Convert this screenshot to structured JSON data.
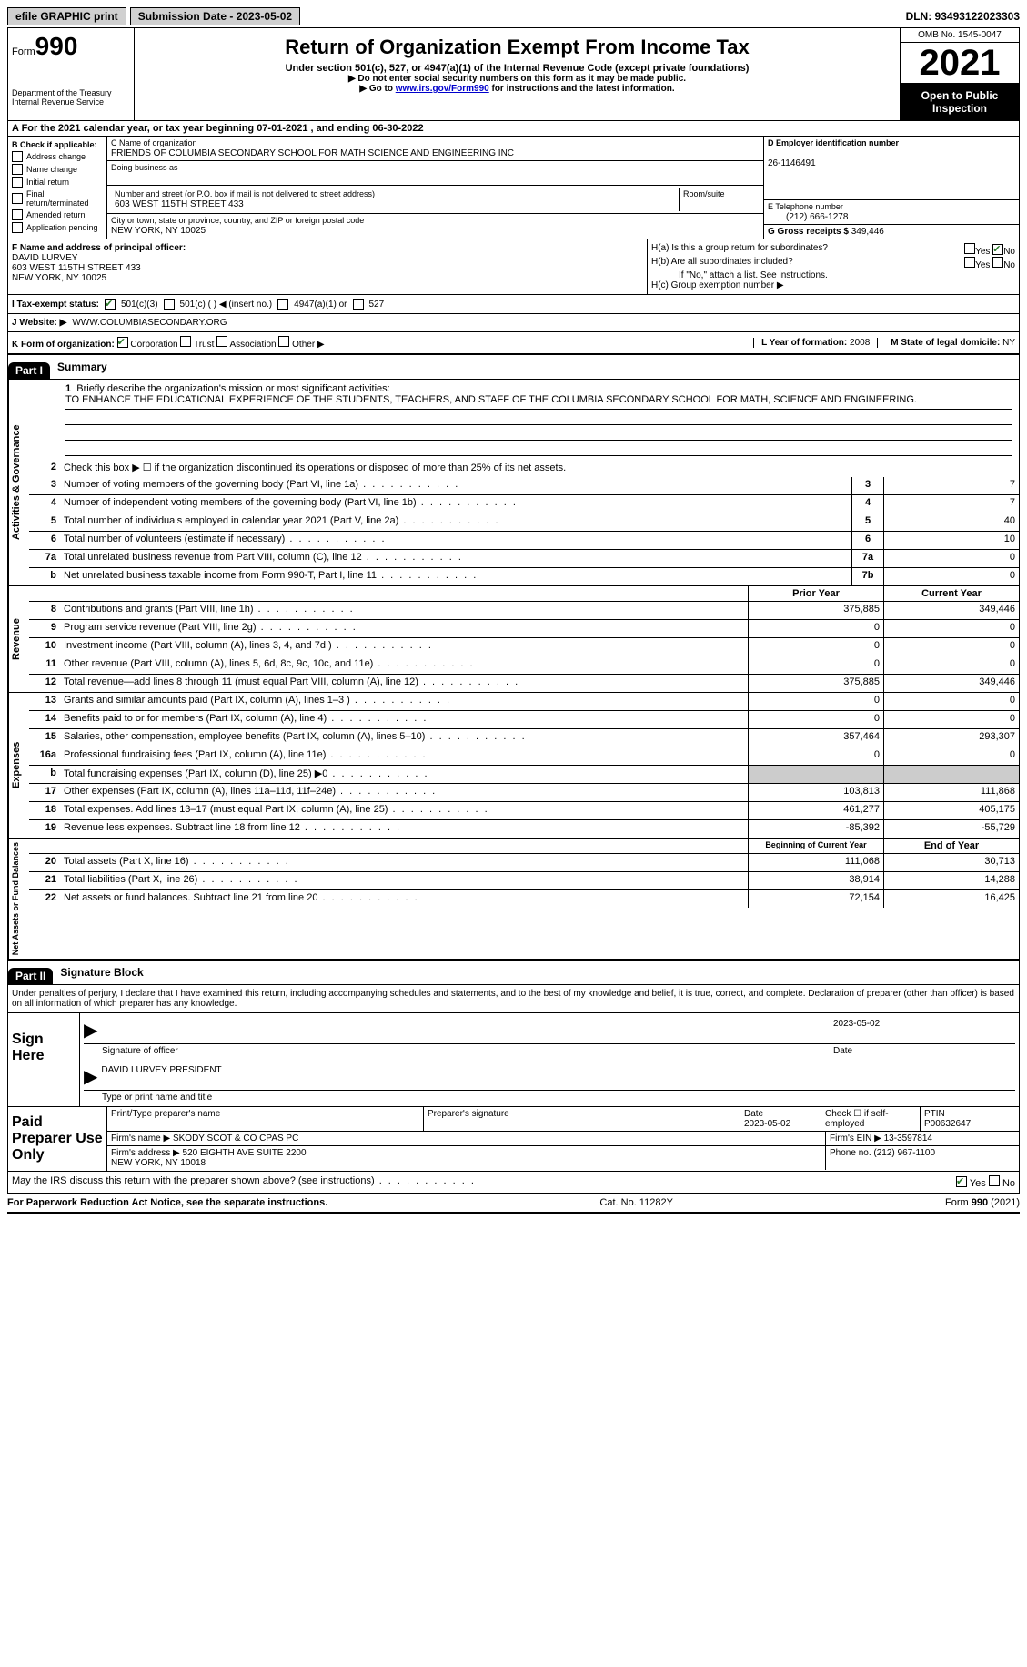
{
  "topbar": {
    "efile": "efile GRAPHIC print",
    "submission": "Submission Date - 2023-05-02",
    "dln": "DLN: 93493122023303"
  },
  "header": {
    "form_prefix": "Form",
    "form_num": "990",
    "title": "Return of Organization Exempt From Income Tax",
    "subtitle": "Under section 501(c), 527, or 4947(a)(1) of the Internal Revenue Code (except private foundations)",
    "line1": "▶ Do not enter social security numbers on this form as it may be made public.",
    "line2_pre": "▶ Go to ",
    "line2_link": "www.irs.gov/Form990",
    "line2_post": " for instructions and the latest information.",
    "dept": "Department of the Treasury\nInternal Revenue Service",
    "omb": "OMB No. 1545-0047",
    "year": "2021",
    "open": "Open to Public Inspection"
  },
  "rowA": "A For the 2021 calendar year, or tax year beginning 07-01-2021    , and ending 06-30-2022",
  "boxB": {
    "label": "B Check if applicable:",
    "items": [
      "Address change",
      "Name change",
      "Initial return",
      "Final return/terminated",
      "Amended return",
      "Application pending"
    ]
  },
  "boxC": {
    "name_label": "C Name of organization",
    "name": "FRIENDS OF COLUMBIA SECONDARY SCHOOL FOR MATH SCIENCE AND ENGINEERING INC",
    "dba_label": "Doing business as",
    "addr_label": "Number and street (or P.O. box if mail is not delivered to street address)",
    "room_label": "Room/suite",
    "addr": "603 WEST 115TH STREET 433",
    "city_label": "City or town, state or province, country, and ZIP or foreign postal code",
    "city": "NEW YORK, NY  10025"
  },
  "boxD": {
    "label": "D Employer identification number",
    "value": "26-1146491"
  },
  "boxE": {
    "label": "E Telephone number",
    "value": "(212) 666-1278"
  },
  "boxG": {
    "label": "G Gross receipts $",
    "value": "349,446"
  },
  "boxF": {
    "label": "F Name and address of principal officer:",
    "name": "DAVID LURVEY",
    "addr": "603 WEST 115TH STREET 433\nNEW YORK, NY  10025"
  },
  "boxH": {
    "a": "H(a)  Is this a group return for subordinates?",
    "b": "H(b)  Are all subordinates included?",
    "note": "If \"No,\" attach a list. See instructions.",
    "c": "H(c)  Group exemption number ▶",
    "yes": "Yes",
    "no": "No"
  },
  "taxStatus": {
    "label": "I   Tax-exempt status:",
    "opts": [
      "501(c)(3)",
      "501(c) (   ) ◀ (insert no.)",
      "4947(a)(1) or",
      "527"
    ]
  },
  "website": {
    "label": "J   Website: ▶",
    "value": "WWW.COLUMBIASECONDARY.ORG"
  },
  "korg": {
    "label": "K Form of organization:",
    "opts": [
      "Corporation",
      "Trust",
      "Association",
      "Other ▶"
    ],
    "l_label": "L Year of formation:",
    "l_value": "2008",
    "m_label": "M State of legal domicile:",
    "m_value": "NY"
  },
  "part1": {
    "header": "Part I",
    "title": "Summary",
    "q1": "Briefly describe the organization's mission or most significant activities:",
    "mission": "TO ENHANCE THE EDUCATIONAL EXPERIENCE OF THE STUDENTS, TEACHERS, AND STAFF OF THE COLUMBIA SECONDARY SCHOOL FOR MATH, SCIENCE AND ENGINEERING.",
    "q2": "Check this box ▶ ☐  if the organization discontinued its operations or disposed of more than 25% of its net assets.",
    "sections": {
      "activities": "Activities & Governance",
      "revenue": "Revenue",
      "expenses": "Expenses",
      "netassets": "Net Assets or Fund Balances"
    },
    "rows_gov": [
      {
        "n": "3",
        "d": "Number of voting members of the governing body (Part VI, line 1a)",
        "box": "3",
        "v": "7"
      },
      {
        "n": "4",
        "d": "Number of independent voting members of the governing body (Part VI, line 1b)",
        "box": "4",
        "v": "7"
      },
      {
        "n": "5",
        "d": "Total number of individuals employed in calendar year 2021 (Part V, line 2a)",
        "box": "5",
        "v": "40"
      },
      {
        "n": "6",
        "d": "Total number of volunteers (estimate if necessary)",
        "box": "6",
        "v": "10"
      },
      {
        "n": "7a",
        "d": "Total unrelated business revenue from Part VIII, column (C), line 12",
        "box": "7a",
        "v": "0"
      },
      {
        "n": "b",
        "d": "Net unrelated business taxable income from Form 990-T, Part I, line 11",
        "box": "7b",
        "v": "0"
      }
    ],
    "col_prior": "Prior Year",
    "col_current": "Current Year",
    "rows_rev": [
      {
        "n": "8",
        "d": "Contributions and grants (Part VIII, line 1h)",
        "p": "375,885",
        "c": "349,446"
      },
      {
        "n": "9",
        "d": "Program service revenue (Part VIII, line 2g)",
        "p": "0",
        "c": "0"
      },
      {
        "n": "10",
        "d": "Investment income (Part VIII, column (A), lines 3, 4, and 7d )",
        "p": "0",
        "c": "0"
      },
      {
        "n": "11",
        "d": "Other revenue (Part VIII, column (A), lines 5, 6d, 8c, 9c, 10c, and 11e)",
        "p": "0",
        "c": "0"
      },
      {
        "n": "12",
        "d": "Total revenue—add lines 8 through 11 (must equal Part VIII, column (A), line 12)",
        "p": "375,885",
        "c": "349,446"
      }
    ],
    "rows_exp": [
      {
        "n": "13",
        "d": "Grants and similar amounts paid (Part IX, column (A), lines 1–3 )",
        "p": "0",
        "c": "0"
      },
      {
        "n": "14",
        "d": "Benefits paid to or for members (Part IX, column (A), line 4)",
        "p": "0",
        "c": "0"
      },
      {
        "n": "15",
        "d": "Salaries, other compensation, employee benefits (Part IX, column (A), lines 5–10)",
        "p": "357,464",
        "c": "293,307"
      },
      {
        "n": "16a",
        "d": "Professional fundraising fees (Part IX, column (A), line 11e)",
        "p": "0",
        "c": "0"
      },
      {
        "n": "b",
        "d": "Total fundraising expenses (Part IX, column (D), line 25) ▶0",
        "p": "",
        "c": "",
        "shade": true
      },
      {
        "n": "17",
        "d": "Other expenses (Part IX, column (A), lines 11a–11d, 11f–24e)",
        "p": "103,813",
        "c": "111,868"
      },
      {
        "n": "18",
        "d": "Total expenses. Add lines 13–17 (must equal Part IX, column (A), line 25)",
        "p": "461,277",
        "c": "405,175"
      },
      {
        "n": "19",
        "d": "Revenue less expenses. Subtract line 18 from line 12",
        "p": "-85,392",
        "c": "-55,729"
      }
    ],
    "col_begin": "Beginning of Current Year",
    "col_end": "End of Year",
    "rows_net": [
      {
        "n": "20",
        "d": "Total assets (Part X, line 16)",
        "p": "111,068",
        "c": "30,713"
      },
      {
        "n": "21",
        "d": "Total liabilities (Part X, line 26)",
        "p": "38,914",
        "c": "14,288"
      },
      {
        "n": "22",
        "d": "Net assets or fund balances. Subtract line 21 from line 20",
        "p": "72,154",
        "c": "16,425"
      }
    ]
  },
  "part2": {
    "header": "Part II",
    "title": "Signature Block",
    "penalties": "Under penalties of perjury, I declare that I have examined this return, including accompanying schedules and statements, and to the best of my knowledge and belief, it is true, correct, and complete. Declaration of preparer (other than officer) is based on all information of which preparer has any knowledge.",
    "sign_here": "Sign Here",
    "sig_officer": "Signature of officer",
    "sig_date": "2023-05-02",
    "date_label": "Date",
    "sig_name": "DAVID LURVEY PRESIDENT",
    "sig_name_label": "Type or print name and title",
    "paid": "Paid Preparer Use Only",
    "prep_name_label": "Print/Type preparer's name",
    "prep_sig_label": "Preparer's signature",
    "prep_date": "Date\n2023-05-02",
    "prep_check": "Check ☐ if self-employed",
    "ptin_label": "PTIN",
    "ptin": "P00632647",
    "firm_name_label": "Firm's name    ▶",
    "firm_name": "SKODY SCOT & CO CPAS PC",
    "firm_ein_label": "Firm's EIN ▶",
    "firm_ein": "13-3597814",
    "firm_addr_label": "Firm's address ▶",
    "firm_addr": "520 EIGHTH AVE SUITE 2200\nNEW YORK, NY  10018",
    "phone_label": "Phone no.",
    "phone": "(212) 967-1100",
    "discuss": "May the IRS discuss this return with the preparer shown above? (see instructions)"
  },
  "footer": {
    "left": "For Paperwork Reduction Act Notice, see the separate instructions.",
    "mid": "Cat. No. 11282Y",
    "right": "Form 990 (2021)"
  }
}
